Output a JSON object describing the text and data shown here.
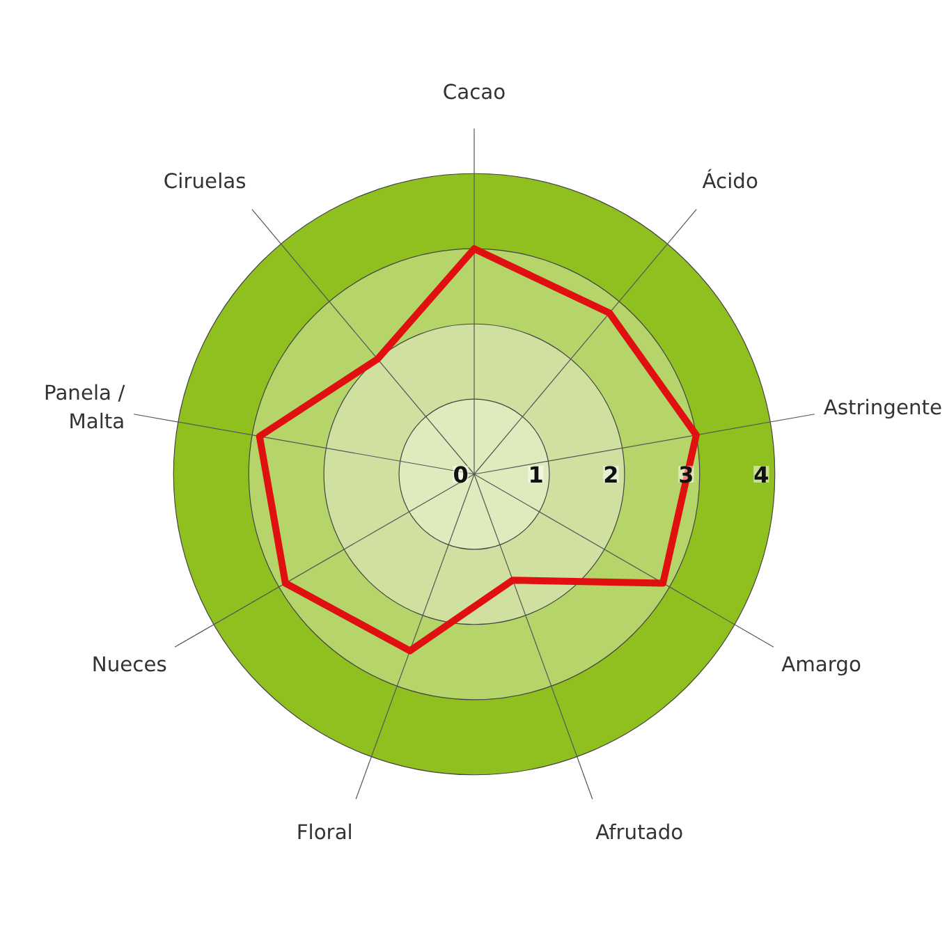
{
  "chart_data": {
    "type": "radar",
    "categories": [
      "Cacao",
      "Ácido",
      "Astringente",
      "Amargo",
      "Afrutado",
      "Floral",
      "Nueces",
      "Panela /\nMalta",
      "Ciruelas"
    ],
    "series": [
      {
        "color": "#e01010",
        "values": [
          3.0,
          2.8,
          3.0,
          2.9,
          1.5,
          2.5,
          2.9,
          2.9,
          2.0
        ]
      }
    ],
    "ylim": [
      0,
      4
    ],
    "yticks": [
      0,
      1,
      2,
      3,
      4
    ],
    "grid": true
  }
}
